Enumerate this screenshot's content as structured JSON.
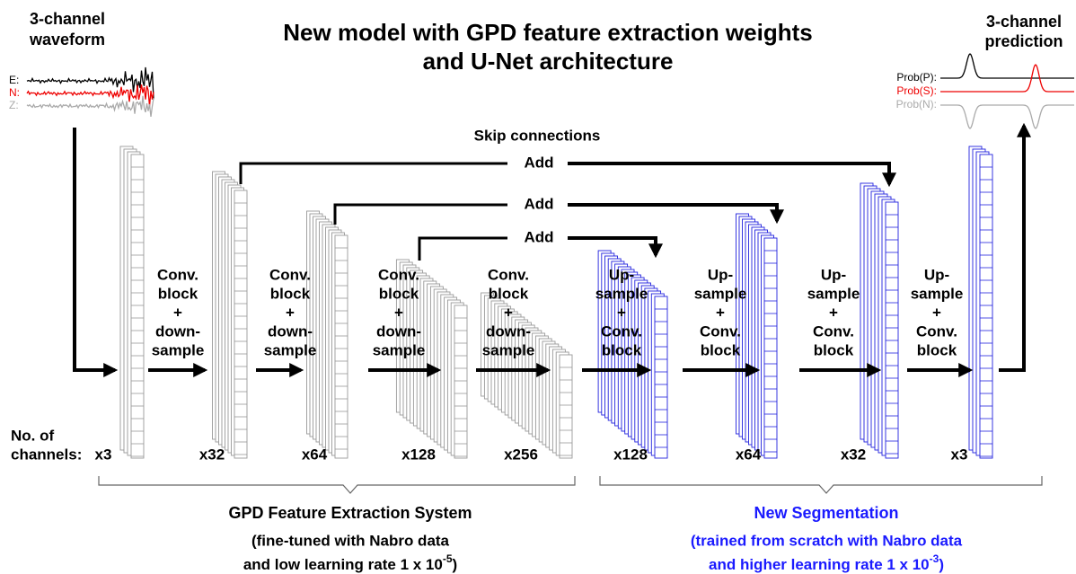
{
  "title": [
    "New model with GPD feature extraction weights",
    "and U-Net architecture"
  ],
  "input": {
    "title": [
      "3-channel",
      "waveform"
    ],
    "channels": [
      "E:",
      "N:",
      "Z:"
    ]
  },
  "output": {
    "title": [
      "3-channel",
      "prediction"
    ],
    "channels": [
      "Prob(P):",
      "Prob(S):",
      "Prob(N):"
    ]
  },
  "skip": {
    "title": "Skip connections",
    "labels": [
      "Add",
      "Add",
      "Add"
    ]
  },
  "operations": [
    {
      "lines": [
        "Conv.",
        "block",
        "+",
        "down-",
        "sample"
      ]
    },
    {
      "lines": [
        "Conv.",
        "block",
        "+",
        "down-",
        "sample"
      ]
    },
    {
      "lines": [
        "Conv.",
        "block",
        "+",
        "down-",
        "sample"
      ]
    },
    {
      "lines": [
        "Conv.",
        "block",
        "+",
        "down-",
        "sample"
      ]
    },
    {
      "lines": [
        "Up-",
        "sample",
        "+",
        "Conv.",
        "block"
      ]
    },
    {
      "lines": [
        "Up-",
        "sample",
        "+",
        "Conv.",
        "block"
      ]
    },
    {
      "lines": [
        "Up-",
        "sample",
        "+",
        "Conv.",
        "block"
      ]
    },
    {
      "lines": [
        "Up-",
        "sample",
        "+",
        "Conv.",
        "block"
      ]
    }
  ],
  "channels": {
    "label": [
      "No. of",
      "channels:"
    ],
    "counts": [
      "x3",
      "x32",
      "x64",
      "x128",
      "x256",
      "x128",
      "x64",
      "x32",
      "x3"
    ]
  },
  "sections": [
    {
      "title": "GPD Feature Extraction System",
      "lines": [
        "(fine-tuned with Nabro data"
      ],
      "rate": {
        "text": "and low learning rate 1 x 10",
        "exponent": "-5",
        "close": ")"
      }
    },
    {
      "title": "New Segmentation",
      "lines": [
        "(trained from scratch with Nabro data"
      ],
      "rate": {
        "text": "and higher learning rate 1 x 10",
        "exponent": "-3",
        "close": ")"
      }
    }
  ]
}
